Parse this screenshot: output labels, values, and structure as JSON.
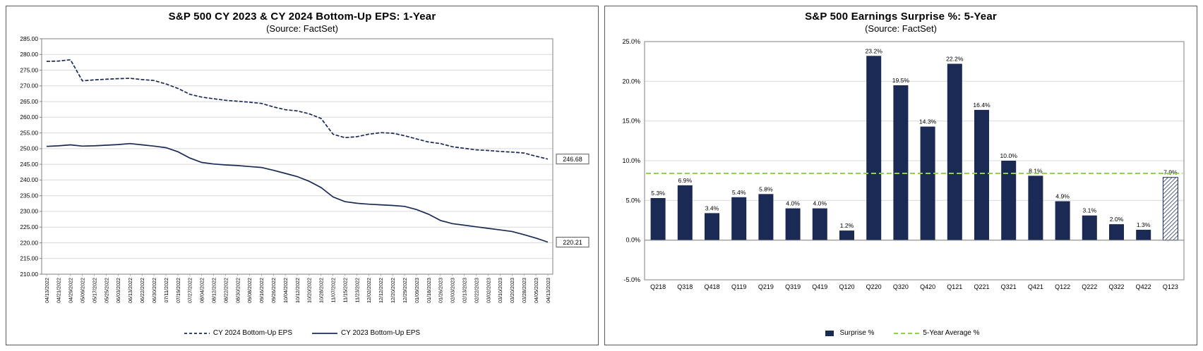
{
  "chart_data": [
    {
      "type": "line",
      "title": "S&P 500 CY 2023 & CY 2024 Bottom-Up EPS: 1-Year",
      "subtitle": "(Source: FactSet)",
      "x": [
        "04/13/2022",
        "04/21/2022",
        "04/29/2022",
        "05/09/2022",
        "05/17/2022",
        "05/25/2022",
        "06/03/2022",
        "06/13/2022",
        "06/22/2022",
        "06/30/2022",
        "07/11/2022",
        "07/19/2022",
        "07/27/2022",
        "08/04/2022",
        "08/12/2022",
        "08/22/2022",
        "08/30/2022",
        "09/08/2022",
        "09/16/2022",
        "09/26/2022",
        "10/04/2022",
        "10/12/2022",
        "10/20/2022",
        "10/28/2022",
        "11/07/2022",
        "11/15/2022",
        "11/23/2022",
        "12/02/2022",
        "12/12/2022",
        "12/20/2022",
        "12/29/2022",
        "01/09/2023",
        "01/18/2023",
        "01/26/2023",
        "02/03/2023",
        "02/13/2023",
        "02/22/2023",
        "03/02/2023",
        "03/10/2023",
        "03/20/2023",
        "03/28/2023",
        "04/05/2023",
        "04/13/2023"
      ],
      "series": [
        {
          "name": "CY 2024 Bottom-Up EPS",
          "style": "dashed",
          "end_label": "246.68",
          "values": [
            277.8,
            277.9,
            278.3,
            271.6,
            271.9,
            272.1,
            272.3,
            272.4,
            272.0,
            271.7,
            270.6,
            269.2,
            267.3,
            266.4,
            265.9,
            265.4,
            265.1,
            264.8,
            264.4,
            263.3,
            262.4,
            262.0,
            261.1,
            259.6,
            254.6,
            253.5,
            253.8,
            254.6,
            255.1,
            254.9,
            254.1,
            253.1,
            252.1,
            251.6,
            250.6,
            250.1,
            249.6,
            249.4,
            249.1,
            248.9,
            248.6,
            247.6,
            246.68
          ]
        },
        {
          "name": "CY 2023 Bottom-Up EPS",
          "style": "solid",
          "end_label": "220.21",
          "values": [
            250.7,
            250.9,
            251.2,
            250.8,
            250.9,
            251.1,
            251.3,
            251.6,
            251.2,
            250.8,
            250.3,
            249.0,
            247.0,
            245.6,
            245.1,
            244.8,
            244.6,
            244.3,
            244.0,
            243.1,
            242.1,
            241.1,
            239.6,
            237.6,
            234.6,
            233.1,
            232.6,
            232.3,
            232.1,
            231.9,
            231.6,
            230.6,
            229.1,
            227.1,
            226.1,
            225.6,
            225.1,
            224.6,
            224.1,
            223.6,
            222.6,
            221.5,
            220.21
          ]
        }
      ],
      "ylim": [
        210,
        285
      ],
      "ytick_step": 5,
      "ytick_format": "2dp",
      "grid": true,
      "line_color": "#1b2a55",
      "legend_position": "bottom",
      "legend": [
        {
          "label": "CY 2024 Bottom-Up EPS",
          "style": "dashed"
        },
        {
          "label": "CY 2023 Bottom-Up EPS",
          "style": "solid"
        }
      ]
    },
    {
      "type": "bar",
      "title": "S&P 500 Earnings Surprise %: 5-Year",
      "subtitle": "(Source: FactSet)",
      "categories": [
        "Q218",
        "Q318",
        "Q418",
        "Q119",
        "Q219",
        "Q319",
        "Q419",
        "Q120",
        "Q220",
        "Q320",
        "Q420",
        "Q121",
        "Q221",
        "Q321",
        "Q421",
        "Q122",
        "Q222",
        "Q322",
        "Q422",
        "Q123"
      ],
      "values": [
        5.3,
        6.9,
        3.4,
        5.4,
        5.8,
        4.0,
        4.0,
        1.2,
        23.2,
        19.5,
        14.3,
        22.2,
        16.4,
        10.0,
        8.1,
        4.9,
        3.1,
        2.0,
        1.3,
        7.9
      ],
      "labels": [
        "5.3%",
        "6.9%",
        "3.4%",
        "5.4%",
        "5.8%",
        "4.0%",
        "4.0%",
        "1.2%",
        "23.2%",
        "19.5%",
        "14.3%",
        "22.2%",
        "16.4%",
        "10.0%",
        "8.1%",
        "4.9%",
        "3.1%",
        "2.0%",
        "1.3%",
        "7.9%"
      ],
      "last_bar_hatched": true,
      "average_line": {
        "label": "5-Year Average %",
        "value": 8.4,
        "color": "#92d050",
        "style": "dashed"
      },
      "ylim": [
        -5,
        25
      ],
      "ytick_step": 5,
      "ytick_format": "pct1dp",
      "grid": true,
      "bar_color": "#1b2a55",
      "legend_position": "bottom",
      "legend": [
        {
          "label": "Surprise %",
          "style": "bar"
        },
        {
          "label": "5-Year Average %",
          "style": "dashed-green"
        }
      ]
    }
  ]
}
